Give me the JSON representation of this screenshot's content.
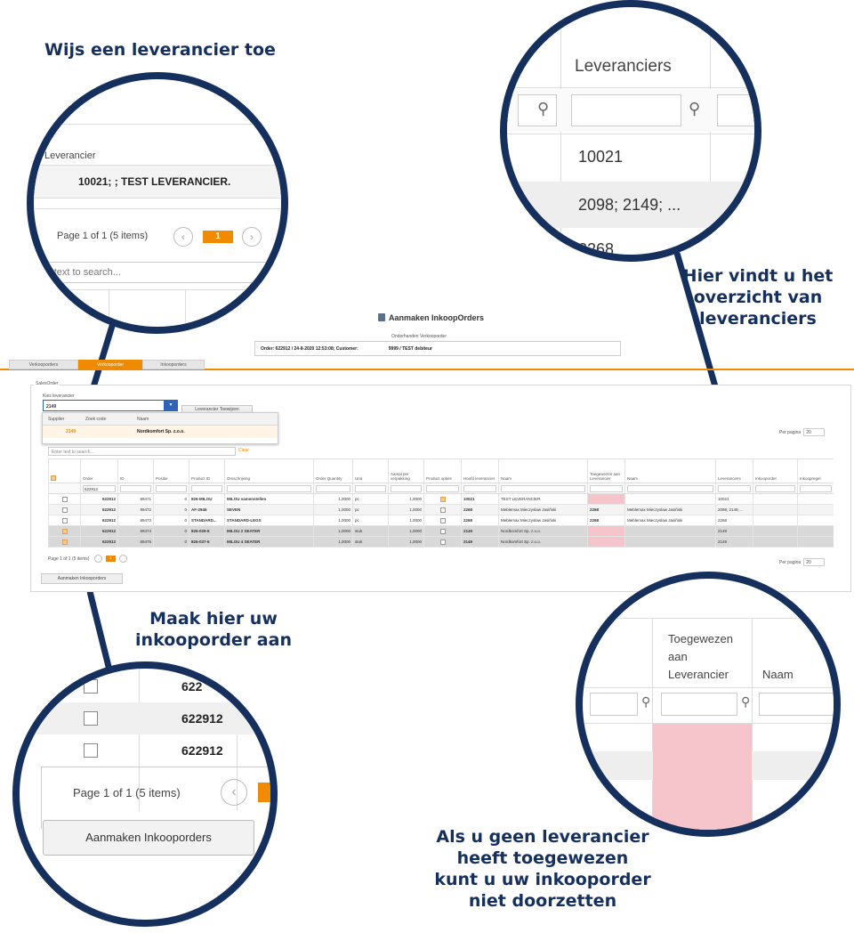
{
  "callouts": {
    "assign_supplier": "Wijs een leverancier toe",
    "overview_line1": "Hier vindt u het",
    "overview_line2": "overzicht van",
    "overview_line3": "leveranciers",
    "create_line1": "Maak hier uw",
    "create_line2": "inkooporder aan",
    "warn_line1": "Als u geen leverancier",
    "warn_line2": "heeft toegewezen",
    "warn_line3": "kunt u uw inkooporder",
    "warn_line4": "niet doorzetten"
  },
  "app": {
    "title": "Aanmaken InkoopOrders",
    "subtitle": "Onderhanden Verkooporder",
    "order_info": "Order: 622912 / 24-8-2020 12:53:08; Customer:",
    "customer": "9999 / TEST debiteur",
    "tabs": [
      "Verkooporders",
      "Verkooporder",
      "Inkooporders"
    ],
    "active_tab": 1,
    "section_label": "SalesOrder",
    "kies_label": "Kies leverancier",
    "kies_value": "2149",
    "assign_button": "Leverancier Toewijzen",
    "dropdown": {
      "headers": [
        "Supplier",
        "Zoek code",
        "Naam"
      ],
      "row": [
        "2149",
        "",
        "Nordkomfort Sp. z.o.o."
      ]
    },
    "search_placeholder": "Enter text to search...",
    "clear_label": "Clear",
    "per_page_label": "Per pagina",
    "per_page_value": "20",
    "columns": [
      "",
      "Order",
      "ID",
      "Positie",
      "Product ID",
      "Omschrijving",
      "Order Quantity",
      "Unit",
      "Aantal per verpakking",
      "Product opties",
      "Hoofd leverancier",
      "Naam",
      "Toegewezen aan Leverancier",
      "Naam",
      "Leveranciers",
      "Inkooporder",
      "Inkoopregel"
    ],
    "filter_order": "622912",
    "rows": [
      {
        "order": "622912",
        "id": "89471",
        "pos": "0",
        "prod": "826-MILOU",
        "desc": "MILOU samenstellen",
        "qty": "1,0000",
        "unit": "pc",
        "per": "1,0000",
        "opt": true,
        "hoofd": "10021",
        "naam": "TEST LEVERANCIER.",
        "toeg": "",
        "tnaam": "",
        "lev": "10021",
        "sel": false
      },
      {
        "order": "622912",
        "id": "89472",
        "pos": "0",
        "prod": "AF-2946",
        "desc": "SEVEN",
        "qty": "1,0000",
        "unit": "pc",
        "per": "1,0000",
        "opt": false,
        "hoofd": "2268",
        "naam": "Meblemax Mieczyslaw Jasiñski",
        "toeg": "2268",
        "tnaam": "Meblemax Mieczyslaw Jasiñski",
        "lev": "2098; 2149; ...",
        "sel": false
      },
      {
        "order": "622912",
        "id": "89473",
        "pos": "0",
        "prod": "STANDARD...",
        "desc": "STANDARD-LEGS",
        "qty": "1,0000",
        "unit": "pc",
        "per": "1,0000",
        "opt": false,
        "hoofd": "2268",
        "naam": "Meblemax Mieczyslaw Jasiñski",
        "toeg": "2268",
        "tnaam": "Meblemax Mieczyslaw Jasiñski",
        "lev": "2268",
        "sel": false
      },
      {
        "order": "622912",
        "id": "89474",
        "pos": "0",
        "prod": "826-029-6",
        "desc": "MILOU 2 SEATER",
        "qty": "1,0000",
        "unit": "stuk",
        "per": "1,0000",
        "opt": false,
        "hoofd": "2149",
        "naam": "Nordkomfort Sp. z.o.o.",
        "toeg": "",
        "tnaam": "",
        "lev": "2149",
        "sel": true
      },
      {
        "order": "622912",
        "id": "89475",
        "pos": "0",
        "prod": "826-037-6",
        "desc": "MILOU 4 SEATER",
        "qty": "1,0000",
        "unit": "stuk",
        "per": "1,0000",
        "opt": false,
        "hoofd": "2149",
        "naam": "Nordkomfort Sp. z.o.o.",
        "toeg": "",
        "tnaam": "",
        "lev": "2149",
        "sel": true
      }
    ],
    "pager_text": "Page 1 of 1 (5 items)",
    "pager_page": "1",
    "create_button": "Aanmaken Inkooporders"
  },
  "mag1": {
    "label": "Leverancier",
    "value": "10021; ; TEST LEVERANCIER.",
    "pager_text": "Page 1 of 1 (5 items)",
    "page": "1",
    "search_placeholder": "r text to search..."
  },
  "mag2": {
    "header": "Leveranciers",
    "values": [
      "10021",
      "2098; 2149; ...",
      "2268"
    ]
  },
  "mag3": {
    "orders": [
      "622",
      "622912",
      "622912"
    ],
    "pager_text": "Page 1 of 1 (5 items)",
    "button": "Aanmaken Inkooporders"
  },
  "mag4": {
    "header1_l1": "Toegewezen",
    "header1_l2": "aan",
    "header1_l3": "Leverancier",
    "header2": "Naam"
  },
  "colors": {
    "navy": "#16305e",
    "accent": "#f08a00",
    "pink": "#f6c5cc",
    "blue_button": "#2f63b8"
  }
}
